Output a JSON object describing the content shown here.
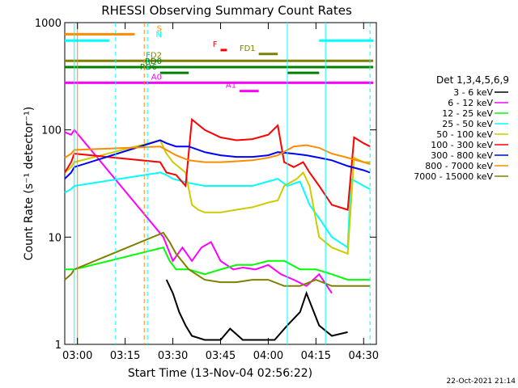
{
  "chart_data": {
    "type": "line",
    "title": "RHESSI Observing Summary Count Rates",
    "xlabel": "Start Time (13-Nov-04 02:56:22)",
    "ylabel": "Count Rate (s⁻¹ detector⁻¹)",
    "y_scale": "log",
    "ylim": [
      1,
      1000
    ],
    "xlim": [
      "02:56",
      "04:34"
    ],
    "x_ticks": [
      "03:00",
      "03:15",
      "03:30",
      "03:45",
      "04:00",
      "04:15",
      "04:30"
    ],
    "y_ticks": [
      "1",
      "10",
      "100",
      "1000"
    ],
    "legend_title": "Det 1,3,4,5,6,9",
    "legend_position": "right",
    "footer": "22-Oct-2021 21:14",
    "series": [
      {
        "name": "3 - 6 keV",
        "color": "#000000",
        "points": [
          [
            "03:28",
            4
          ],
          [
            "03:30",
            3
          ],
          [
            "03:32",
            2
          ],
          [
            "03:34",
            1.5
          ],
          [
            "03:36",
            1.2
          ],
          [
            "03:40",
            1.1
          ],
          [
            "03:45",
            1.1
          ],
          [
            "03:48",
            1.4
          ],
          [
            "03:52",
            1.1
          ],
          [
            "03:58",
            1.1
          ],
          [
            "04:02",
            1.1
          ],
          [
            "04:06",
            1.5
          ],
          [
            "04:10",
            2
          ],
          [
            "04:12",
            3
          ],
          [
            "04:16",
            1.5
          ],
          [
            "04:20",
            1.2
          ],
          [
            "04:25",
            1.3
          ]
        ]
      },
      {
        "name": "6 - 12 keV",
        "color": "#ff00ff",
        "points": [
          [
            "02:56",
            95
          ],
          [
            "02:58",
            90
          ],
          [
            "02:59",
            100
          ],
          [
            "03:27",
            10
          ],
          [
            "03:30",
            6
          ],
          [
            "03:33",
            8
          ],
          [
            "03:36",
            6
          ],
          [
            "03:39",
            8
          ],
          [
            "03:42",
            9
          ],
          [
            "03:45",
            6
          ],
          [
            "03:49",
            5
          ],
          [
            "03:52",
            5.2
          ],
          [
            "03:56",
            5
          ],
          [
            "04:00",
            5.5
          ],
          [
            "04:04",
            4.5
          ],
          [
            "04:08",
            4
          ],
          [
            "04:12",
            3.5
          ],
          [
            "04:16",
            4.5
          ],
          [
            "04:20",
            3
          ]
        ]
      },
      {
        "name": "12 - 25 keV",
        "color": "#00ff00",
        "points": [
          [
            "02:56",
            5
          ],
          [
            "02:58",
            5
          ],
          [
            "02:59",
            5
          ],
          [
            "03:27",
            8
          ],
          [
            "03:29",
            6
          ],
          [
            "03:31",
            5
          ],
          [
            "03:35",
            5
          ],
          [
            "03:40",
            4.5
          ],
          [
            "03:45",
            5
          ],
          [
            "03:50",
            5.5
          ],
          [
            "03:55",
            5.5
          ],
          [
            "04:00",
            6
          ],
          [
            "04:05",
            6
          ],
          [
            "04:10",
            5
          ],
          [
            "04:15",
            5
          ],
          [
            "04:20",
            4.5
          ],
          [
            "04:25",
            4
          ],
          [
            "04:30",
            4
          ],
          [
            "04:32",
            4
          ]
        ]
      },
      {
        "name": "25 - 50 keV",
        "color": "#00ffff",
        "points": [
          [
            "02:56",
            26
          ],
          [
            "02:58",
            28
          ],
          [
            "02:59",
            30
          ],
          [
            "03:26",
            40
          ],
          [
            "03:28",
            38
          ],
          [
            "03:30",
            35
          ],
          [
            "03:35",
            32
          ],
          [
            "03:40",
            30
          ],
          [
            "03:45",
            30
          ],
          [
            "03:50",
            30
          ],
          [
            "03:55",
            30
          ],
          [
            "04:00",
            33
          ],
          [
            "04:03",
            35
          ],
          [
            "04:06",
            30
          ],
          [
            "04:10",
            33
          ],
          [
            "04:13",
            20
          ],
          [
            "04:16",
            15
          ],
          [
            "04:20",
            10
          ],
          [
            "04:25",
            8
          ],
          [
            "04:26",
            35
          ],
          [
            "04:30",
            30
          ],
          [
            "04:32",
            28
          ]
        ]
      },
      {
        "name": "50 - 100 keV",
        "color": "#cccc00",
        "points": [
          [
            "02:56",
            40
          ],
          [
            "02:58",
            45
          ],
          [
            "02:59",
            50
          ],
          [
            "03:26",
            80
          ],
          [
            "03:28",
            60
          ],
          [
            "03:30",
            50
          ],
          [
            "03:34",
            40
          ],
          [
            "03:36",
            20
          ],
          [
            "03:38",
            18
          ],
          [
            "03:40",
            17
          ],
          [
            "03:45",
            17
          ],
          [
            "03:50",
            18
          ],
          [
            "03:55",
            19
          ],
          [
            "04:00",
            21
          ],
          [
            "04:03",
            22
          ],
          [
            "04:05",
            30
          ],
          [
            "04:09",
            35
          ],
          [
            "04:11",
            40
          ],
          [
            "04:13",
            30
          ],
          [
            "04:16",
            10
          ],
          [
            "04:20",
            8
          ],
          [
            "04:25",
            7
          ],
          [
            "04:27",
            55
          ],
          [
            "04:30",
            50
          ],
          [
            "04:32",
            50
          ]
        ]
      },
      {
        "name": "100 - 300 keV",
        "color": "#ff0000",
        "points": [
          [
            "02:56",
            40
          ],
          [
            "02:58",
            50
          ],
          [
            "02:59",
            60
          ],
          [
            "03:26",
            50
          ],
          [
            "03:28",
            40
          ],
          [
            "03:31",
            38
          ],
          [
            "03:34",
            30
          ],
          [
            "03:36",
            125
          ],
          [
            "03:40",
            100
          ],
          [
            "03:45",
            85
          ],
          [
            "03:50",
            80
          ],
          [
            "03:55",
            82
          ],
          [
            "04:00",
            90
          ],
          [
            "04:03",
            110
          ],
          [
            "04:05",
            50
          ],
          [
            "04:08",
            45
          ],
          [
            "04:11",
            50
          ],
          [
            "04:13",
            40
          ],
          [
            "04:16",
            30
          ],
          [
            "04:20",
            20
          ],
          [
            "04:25",
            18
          ],
          [
            "04:27",
            85
          ],
          [
            "04:30",
            75
          ],
          [
            "04:32",
            70
          ]
        ]
      },
      {
        "name": "300 - 800 keV",
        "color": "#0000ff",
        "points": [
          [
            "02:56",
            35
          ],
          [
            "02:58",
            40
          ],
          [
            "02:59",
            45
          ],
          [
            "03:26",
            80
          ],
          [
            "03:28",
            75
          ],
          [
            "03:31",
            70
          ],
          [
            "03:35",
            70
          ],
          [
            "03:40",
            62
          ],
          [
            "03:45",
            58
          ],
          [
            "03:50",
            56
          ],
          [
            "03:55",
            56
          ],
          [
            "04:00",
            58
          ],
          [
            "04:03",
            62
          ],
          [
            "04:08",
            60
          ],
          [
            "04:12",
            58
          ],
          [
            "04:16",
            55
          ],
          [
            "04:20",
            52
          ],
          [
            "04:25",
            46
          ],
          [
            "04:30",
            42
          ],
          [
            "04:32",
            40
          ]
        ]
      },
      {
        "name": "800 - 7000 keV",
        "color": "#ff8c00",
        "points": [
          [
            "02:56",
            55
          ],
          [
            "02:58",
            60
          ],
          [
            "02:59",
            65
          ],
          [
            "03:26",
            70
          ],
          [
            "03:28",
            65
          ],
          [
            "03:31",
            58
          ],
          [
            "03:35",
            52
          ],
          [
            "03:40",
            50
          ],
          [
            "03:45",
            50
          ],
          [
            "03:50",
            51
          ],
          [
            "03:55",
            52
          ],
          [
            "04:00",
            55
          ],
          [
            "04:03",
            58
          ],
          [
            "04:08",
            70
          ],
          [
            "04:12",
            72
          ],
          [
            "04:16",
            68
          ],
          [
            "04:20",
            60
          ],
          [
            "04:25",
            55
          ],
          [
            "04:30",
            50
          ],
          [
            "04:32",
            48
          ]
        ]
      },
      {
        "name": "7000 - 15000 keV",
        "color": "#808000",
        "points": [
          [
            "02:56",
            4
          ],
          [
            "02:58",
            4.5
          ],
          [
            "02:59",
            5
          ],
          [
            "03:27",
            11
          ],
          [
            "03:29",
            9
          ],
          [
            "03:31",
            7
          ],
          [
            "03:35",
            5
          ],
          [
            "03:40",
            4
          ],
          [
            "03:45",
            3.8
          ],
          [
            "03:50",
            3.8
          ],
          [
            "03:55",
            4
          ],
          [
            "04:00",
            4
          ],
          [
            "04:05",
            3.5
          ],
          [
            "04:10",
            3.5
          ],
          [
            "04:15",
            4
          ],
          [
            "04:20",
            3.5
          ],
          [
            "04:25",
            3.5
          ],
          [
            "04:30",
            3.5
          ],
          [
            "04:32",
            3.5
          ]
        ]
      }
    ],
    "state_bars": [
      {
        "label": "S",
        "color": "#ff8c00",
        "level": 780,
        "segments": [
          [
            "02:56",
            "03:18"
          ]
        ]
      },
      {
        "label": "N",
        "color": "#00ffff",
        "level": 680,
        "segments": [
          [
            "02:56",
            "03:10"
          ],
          [
            "04:16",
            "04:33"
          ]
        ]
      },
      {
        "label": "F",
        "color": "#ff0000",
        "level": 555,
        "segments": [
          [
            "03:45",
            "03:47"
          ]
        ]
      },
      {
        "label": "FD1",
        "color": "#808000",
        "level": 510,
        "segments": [
          [
            "03:57",
            "04:03"
          ]
        ]
      },
      {
        "label": "FD2",
        "color": "#808000",
        "level": 440,
        "segments": [
          [
            "02:56",
            "04:33"
          ]
        ]
      },
      {
        "label": "RD0",
        "color": "#008000",
        "level": 385,
        "segments": [
          [
            "02:56",
            "04:33"
          ]
        ]
      },
      {
        "label": "RD6",
        "color": "#008000",
        "level": 340,
        "segments": [
          [
            "03:26",
            "03:35"
          ],
          [
            "04:06",
            "04:16"
          ]
        ]
      },
      {
        "label": "A0",
        "color": "#ff00ff",
        "level": 275,
        "segments": [
          [
            "02:56",
            "04:33"
          ]
        ]
      },
      {
        "label": "A1",
        "color": "#ff00ff",
        "level": 230,
        "segments": [
          [
            "03:51",
            "03:57"
          ]
        ]
      }
    ],
    "vertical_lines": [
      {
        "time": "02:59",
        "color": "#00ffff",
        "dash": false
      },
      {
        "time": "03:00",
        "color": "#ff8c00",
        "dash": false
      },
      {
        "time": "03:12",
        "color": "#00ffff",
        "dash": true
      },
      {
        "time": "03:21",
        "color": "#ff8c00",
        "dash": true
      },
      {
        "time": "03:22",
        "color": "#00ffff",
        "dash": true
      },
      {
        "time": "04:06",
        "color": "#00ffff",
        "dash": false
      },
      {
        "time": "04:18",
        "color": "#00ffff",
        "dash": false
      },
      {
        "time": "04:32",
        "color": "#00ffff",
        "dash": true
      }
    ]
  }
}
